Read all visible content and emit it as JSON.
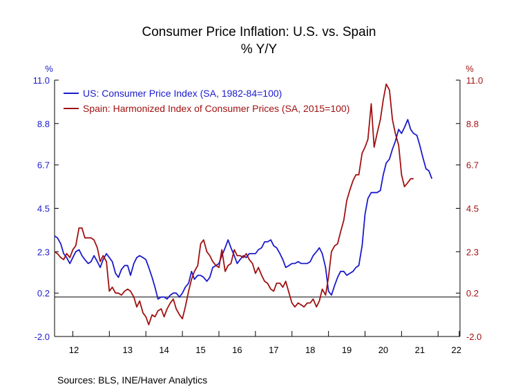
{
  "chart_data": {
    "type": "line",
    "title": "Consumer Price Inflation: U.S. vs. Spain",
    "subtitle": "% Y/Y",
    "left_axis_label": "%",
    "right_axis_label": "%",
    "ylim": [
      -2.0,
      11.0
    ],
    "yticks": [
      "11.0",
      "8.8",
      "6.7",
      "4.5",
      "2.3",
      "0.2",
      "-2.0"
    ],
    "ytick_values": [
      11.0,
      8.8,
      6.7,
      4.5,
      2.3,
      0.2,
      -2.0
    ],
    "x_range": [
      2011.5,
      2022.6
    ],
    "xticks": [
      "12",
      "13",
      "14",
      "15",
      "16",
      "17",
      "18",
      "19",
      "20",
      "21",
      "22"
    ],
    "reference_line": 0.0,
    "source": "Sources:   BLS, INE/Haver Analytics",
    "series": [
      {
        "name": "US: Consumer Price Index (SA, 1982-84=100)",
        "color": "#1a1acc",
        "axis": "left",
        "points": [
          [
            2011.5,
            3.1
          ],
          [
            2011.58,
            3.0
          ],
          [
            2011.67,
            2.7
          ],
          [
            2011.75,
            2.2
          ],
          [
            2011.83,
            2.0
          ],
          [
            2011.92,
            1.7
          ],
          [
            2012.0,
            2.0
          ],
          [
            2012.08,
            2.3
          ],
          [
            2012.17,
            2.4
          ],
          [
            2012.25,
            2.1
          ],
          [
            2012.33,
            1.9
          ],
          [
            2012.42,
            1.7
          ],
          [
            2012.5,
            1.8
          ],
          [
            2012.58,
            2.1
          ],
          [
            2012.67,
            1.8
          ],
          [
            2012.75,
            1.5
          ],
          [
            2012.83,
            1.9
          ],
          [
            2012.92,
            2.2
          ],
          [
            2013.0,
            2.0
          ],
          [
            2013.08,
            1.8
          ],
          [
            2013.17,
            1.2
          ],
          [
            2013.25,
            1.0
          ],
          [
            2013.33,
            1.4
          ],
          [
            2013.42,
            1.6
          ],
          [
            2013.5,
            1.6
          ],
          [
            2013.58,
            1.1
          ],
          [
            2013.67,
            1.7
          ],
          [
            2013.75,
            2.0
          ],
          [
            2013.83,
            2.1
          ],
          [
            2013.92,
            2.0
          ],
          [
            2014.0,
            1.9
          ],
          [
            2014.08,
            1.5
          ],
          [
            2014.17,
            1.0
          ],
          [
            2014.25,
            0.5
          ],
          [
            2014.33,
            -0.1
          ],
          [
            2014.42,
            0.0
          ],
          [
            2014.5,
            0.0
          ],
          [
            2014.58,
            -0.1
          ],
          [
            2014.67,
            0.1
          ],
          [
            2014.75,
            0.2
          ],
          [
            2014.83,
            0.2
          ],
          [
            2014.92,
            0.0
          ],
          [
            2015.0,
            0.2
          ],
          [
            2015.08,
            0.5
          ],
          [
            2015.17,
            0.7
          ],
          [
            2015.25,
            1.3
          ],
          [
            2015.33,
            0.9
          ],
          [
            2015.42,
            1.1
          ],
          [
            2015.5,
            1.1
          ],
          [
            2015.58,
            1.0
          ],
          [
            2015.67,
            0.8
          ],
          [
            2015.75,
            1.0
          ],
          [
            2015.83,
            1.5
          ],
          [
            2015.92,
            1.6
          ],
          [
            2016.0,
            1.7
          ],
          [
            2016.08,
            2.1
          ],
          [
            2016.17,
            2.5
          ],
          [
            2016.25,
            2.9
          ],
          [
            2016.33,
            2.5
          ],
          [
            2016.42,
            2.1
          ],
          [
            2016.5,
            1.7
          ],
          [
            2016.58,
            1.9
          ],
          [
            2016.67,
            2.1
          ],
          [
            2016.75,
            2.0
          ],
          [
            2016.83,
            2.2
          ],
          [
            2016.92,
            2.2
          ],
          [
            2017.0,
            2.2
          ],
          [
            2017.08,
            2.4
          ],
          [
            2017.17,
            2.5
          ],
          [
            2017.25,
            2.8
          ],
          [
            2017.33,
            2.8
          ],
          [
            2017.42,
            2.9
          ],
          [
            2017.5,
            2.6
          ],
          [
            2017.58,
            2.5
          ],
          [
            2017.67,
            2.2
          ],
          [
            2017.75,
            1.9
          ],
          [
            2017.83,
            1.5
          ],
          [
            2017.92,
            1.6
          ],
          [
            2018.0,
            1.7
          ],
          [
            2018.08,
            1.7
          ],
          [
            2018.17,
            1.8
          ],
          [
            2018.25,
            1.7
          ],
          [
            2018.33,
            1.7
          ],
          [
            2018.42,
            1.7
          ],
          [
            2018.5,
            1.8
          ],
          [
            2018.58,
            2.1
          ],
          [
            2018.67,
            2.3
          ],
          [
            2018.75,
            2.5
          ],
          [
            2018.83,
            2.2
          ],
          [
            2018.92,
            1.5
          ],
          [
            2019.0,
            0.3
          ],
          [
            2019.08,
            0.1
          ],
          [
            2019.17,
            0.6
          ],
          [
            2019.25,
            1.0
          ],
          [
            2019.33,
            1.3
          ],
          [
            2019.42,
            1.3
          ],
          [
            2019.5,
            1.1
          ],
          [
            2019.58,
            1.2
          ],
          [
            2019.67,
            1.3
          ],
          [
            2019.75,
            1.5
          ],
          [
            2019.83,
            1.6
          ],
          [
            2019.92,
            2.6
          ],
          [
            2020.0,
            4.2
          ],
          [
            2020.08,
            5.0
          ],
          [
            2020.17,
            5.3
          ],
          [
            2020.25,
            5.3
          ],
          [
            2020.33,
            5.3
          ],
          [
            2020.42,
            5.4
          ],
          [
            2020.5,
            6.2
          ],
          [
            2020.58,
            6.8
          ],
          [
            2020.67,
            7.0
          ],
          [
            2020.75,
            7.5
          ],
          [
            2020.83,
            7.9
          ],
          [
            2020.92,
            8.5
          ],
          [
            2021.0,
            8.3
          ],
          [
            2021.08,
            8.6
          ],
          [
            2021.17,
            9.0
          ],
          [
            2021.25,
            8.5
          ],
          [
            2021.33,
            8.3
          ],
          [
            2021.42,
            8.2
          ],
          [
            2021.5,
            7.7
          ],
          [
            2021.58,
            7.1
          ],
          [
            2021.67,
            6.5
          ],
          [
            2021.75,
            6.4
          ],
          [
            2021.83,
            6.0
          ]
        ]
      },
      {
        "name": "Spain: Harmonized Index of Consumer Prices (SA, 2015=100)",
        "color": "#a01010",
        "axis": "right",
        "points": [
          [
            2011.5,
            2.3
          ],
          [
            2011.58,
            2.2
          ],
          [
            2011.67,
            2.0
          ],
          [
            2011.75,
            1.9
          ],
          [
            2011.83,
            2.2
          ],
          [
            2011.92,
            2.0
          ],
          [
            2012.0,
            2.4
          ],
          [
            2012.08,
            2.6
          ],
          [
            2012.17,
            3.5
          ],
          [
            2012.25,
            3.5
          ],
          [
            2012.33,
            3.0
          ],
          [
            2012.42,
            3.0
          ],
          [
            2012.5,
            3.0
          ],
          [
            2012.58,
            2.9
          ],
          [
            2012.67,
            2.5
          ],
          [
            2012.75,
            1.8
          ],
          [
            2012.83,
            2.1
          ],
          [
            2012.92,
            1.8
          ],
          [
            2013.0,
            0.3
          ],
          [
            2013.08,
            0.5
          ],
          [
            2013.17,
            0.2
          ],
          [
            2013.25,
            0.2
          ],
          [
            2013.33,
            0.1
          ],
          [
            2013.42,
            0.3
          ],
          [
            2013.5,
            0.4
          ],
          [
            2013.58,
            0.3
          ],
          [
            2013.67,
            0.0
          ],
          [
            2013.75,
            -0.5
          ],
          [
            2013.83,
            -0.2
          ],
          [
            2013.92,
            -0.8
          ],
          [
            2014.0,
            -1.0
          ],
          [
            2014.08,
            -1.4
          ],
          [
            2014.17,
            -0.9
          ],
          [
            2014.25,
            -1.0
          ],
          [
            2014.33,
            -0.7
          ],
          [
            2014.42,
            -0.6
          ],
          [
            2014.5,
            -1.0
          ],
          [
            2014.58,
            -0.6
          ],
          [
            2014.67,
            -0.3
          ],
          [
            2014.75,
            -0.1
          ],
          [
            2014.83,
            -0.6
          ],
          [
            2014.92,
            -0.9
          ],
          [
            2015.0,
            -1.1
          ],
          [
            2015.08,
            -0.5
          ],
          [
            2015.17,
            0.3
          ],
          [
            2015.25,
            0.9
          ],
          [
            2015.33,
            1.3
          ],
          [
            2015.42,
            1.6
          ],
          [
            2015.5,
            2.7
          ],
          [
            2015.58,
            2.9
          ],
          [
            2015.67,
            2.3
          ],
          [
            2015.75,
            2.1
          ],
          [
            2015.83,
            1.8
          ],
          [
            2015.92,
            1.6
          ],
          [
            2016.0,
            1.5
          ],
          [
            2016.08,
            2.4
          ],
          [
            2016.17,
            1.3
          ],
          [
            2016.25,
            1.6
          ],
          [
            2016.33,
            1.7
          ],
          [
            2016.42,
            2.4
          ],
          [
            2016.5,
            2.1
          ],
          [
            2016.58,
            2.1
          ],
          [
            2016.67,
            2.0
          ],
          [
            2016.75,
            2.2
          ],
          [
            2016.83,
            1.9
          ],
          [
            2016.92,
            1.7
          ],
          [
            2017.0,
            1.2
          ],
          [
            2017.08,
            1.5
          ],
          [
            2017.17,
            1.1
          ],
          [
            2017.25,
            0.8
          ],
          [
            2017.33,
            0.7
          ],
          [
            2017.42,
            0.4
          ],
          [
            2017.5,
            0.3
          ],
          [
            2017.58,
            0.7
          ],
          [
            2017.67,
            0.7
          ],
          [
            2017.75,
            0.5
          ],
          [
            2017.83,
            0.8
          ],
          [
            2017.92,
            0.2
          ],
          [
            2018.0,
            -0.3
          ],
          [
            2018.08,
            -0.5
          ],
          [
            2018.17,
            -0.3
          ],
          [
            2018.25,
            -0.4
          ],
          [
            2018.33,
            -0.5
          ],
          [
            2018.42,
            -0.3
          ],
          [
            2018.5,
            -0.3
          ],
          [
            2018.58,
            -0.1
          ],
          [
            2018.67,
            -0.5
          ],
          [
            2018.75,
            -0.2
          ],
          [
            2018.83,
            0.4
          ],
          [
            2018.92,
            0.1
          ],
          [
            2019.0,
            1.0
          ],
          [
            2019.08,
            2.3
          ],
          [
            2019.17,
            2.6
          ],
          [
            2019.25,
            2.7
          ],
          [
            2019.33,
            3.3
          ],
          [
            2019.42,
            3.9
          ],
          [
            2019.5,
            4.9
          ],
          [
            2019.58,
            5.4
          ],
          [
            2019.67,
            5.9
          ],
          [
            2019.75,
            6.2
          ],
          [
            2019.83,
            6.2
          ],
          [
            2019.92,
            7.3
          ],
          [
            2020.0,
            7.6
          ],
          [
            2020.08,
            8.0
          ],
          [
            2020.17,
            9.8
          ],
          [
            2020.25,
            7.6
          ],
          [
            2020.33,
            8.3
          ],
          [
            2020.42,
            9.0
          ],
          [
            2020.5,
            10.0
          ],
          [
            2020.58,
            10.8
          ],
          [
            2020.67,
            10.5
          ],
          [
            2020.75,
            9.0
          ],
          [
            2020.83,
            8.3
          ],
          [
            2020.92,
            7.7
          ],
          [
            2021.0,
            6.2
          ],
          [
            2021.08,
            5.6
          ],
          [
            2021.17,
            5.8
          ],
          [
            2021.25,
            6.0
          ],
          [
            2021.33,
            6.0
          ]
        ]
      }
    ]
  }
}
